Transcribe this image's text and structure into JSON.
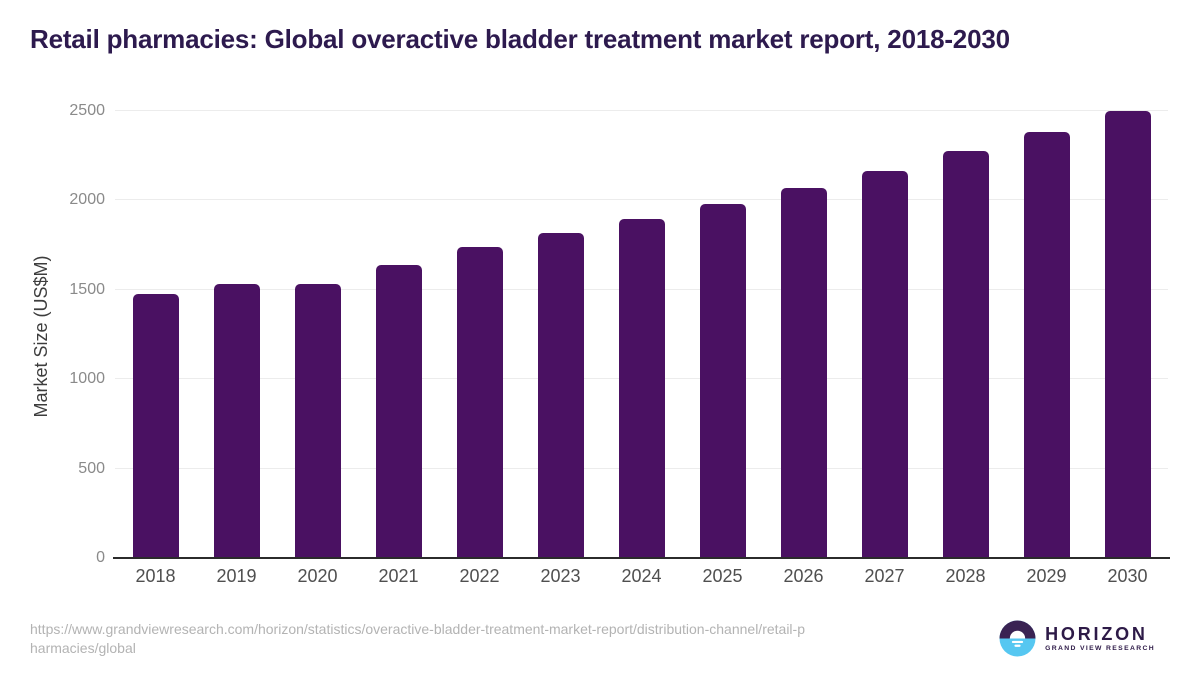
{
  "chart_data": {
    "type": "bar",
    "title": "Retail pharmacies: Global overactive bladder treatment market report, 2018-2030",
    "categories": [
      "2018",
      "2019",
      "2020",
      "2021",
      "2022",
      "2023",
      "2024",
      "2025",
      "2026",
      "2027",
      "2028",
      "2029",
      "2030"
    ],
    "values": [
      1475,
      1535,
      1535,
      1640,
      1740,
      1815,
      1895,
      1980,
      2070,
      2165,
      2275,
      2380,
      2500
    ],
    "xlabel": "",
    "ylabel": "Market Size (US$M)",
    "ylim": [
      0,
      2500
    ],
    "yticks": [
      0,
      500,
      1000,
      1500,
      2000,
      2500
    ],
    "grid": true,
    "legend": false,
    "bar_color": "#4a1162"
  },
  "colors": {
    "title_text": "#2d1a4e",
    "bar": "#4a1162",
    "gridline": "#ececec",
    "axis_line": "#2b2b2b",
    "y_tick_text": "#8a8a8a",
    "x_tick_text": "#4f4f4f",
    "source_text": "#b3b3b3",
    "logo_purple": "#3a2353",
    "logo_blue": "#56c7f1"
  },
  "footer": {
    "source_url": "https://www.grandviewresearch.com/horizon/statistics/overactive-bladder-treatment-market-report/distribution-channel/retail-pharmacies/global",
    "url_lines": [
      "https://www.grandviewresearch.com/horizon/statistics/overactive-bladder-treatment-market-report/distribution-channel/retail-p",
      "harmacies/global"
    ],
    "logo": {
      "name": "HORIZON",
      "subtitle": "GRAND VIEW RESEARCH"
    }
  }
}
